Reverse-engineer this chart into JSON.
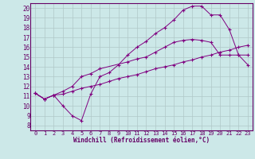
{
  "title": "",
  "xlabel": "Windchill (Refroidissement éolien,°C)",
  "bg_color": "#cce8e8",
  "line_color": "#800080",
  "grid_color": "#b0c8c8",
  "xlim": [
    -0.5,
    23.5
  ],
  "ylim": [
    7.5,
    20.5
  ],
  "xticks": [
    0,
    1,
    2,
    3,
    4,
    5,
    6,
    7,
    8,
    9,
    10,
    11,
    12,
    13,
    14,
    15,
    16,
    17,
    18,
    19,
    20,
    21,
    22,
    23
  ],
  "yticks": [
    8,
    9,
    10,
    11,
    12,
    13,
    14,
    15,
    16,
    17,
    18,
    19,
    20
  ],
  "line1_x": [
    0,
    1,
    2,
    3,
    4,
    5,
    6,
    7,
    8,
    9,
    10,
    11,
    12,
    13,
    14,
    15,
    16,
    17,
    18,
    19,
    20,
    21,
    22,
    23
  ],
  "line1_y": [
    11.3,
    10.7,
    11.1,
    10.0,
    9.0,
    8.5,
    11.2,
    13.0,
    13.4,
    14.2,
    15.2,
    16.0,
    16.6,
    17.4,
    18.0,
    18.8,
    19.8,
    20.2,
    20.2,
    19.3,
    19.3,
    17.8,
    15.2,
    14.2
  ],
  "line2_x": [
    0,
    1,
    2,
    3,
    4,
    5,
    6,
    7,
    10,
    11,
    12,
    13,
    14,
    15,
    16,
    17,
    18,
    19,
    20,
    21,
    22,
    23
  ],
  "line2_y": [
    11.3,
    10.7,
    11.1,
    11.5,
    12.0,
    13.0,
    13.3,
    13.8,
    14.5,
    14.8,
    15.0,
    15.5,
    16.0,
    16.5,
    16.7,
    16.8,
    16.7,
    16.5,
    15.2,
    15.2,
    15.2,
    15.2
  ],
  "line3_x": [
    0,
    1,
    2,
    3,
    4,
    5,
    6,
    7,
    8,
    9,
    10,
    11,
    12,
    13,
    14,
    15,
    16,
    17,
    18,
    19,
    20,
    21,
    22,
    23
  ],
  "line3_y": [
    11.3,
    10.7,
    11.1,
    11.2,
    11.5,
    11.8,
    12.0,
    12.2,
    12.5,
    12.8,
    13.0,
    13.2,
    13.5,
    13.8,
    14.0,
    14.2,
    14.5,
    14.7,
    15.0,
    15.2,
    15.5,
    15.7,
    16.0,
    16.2
  ]
}
